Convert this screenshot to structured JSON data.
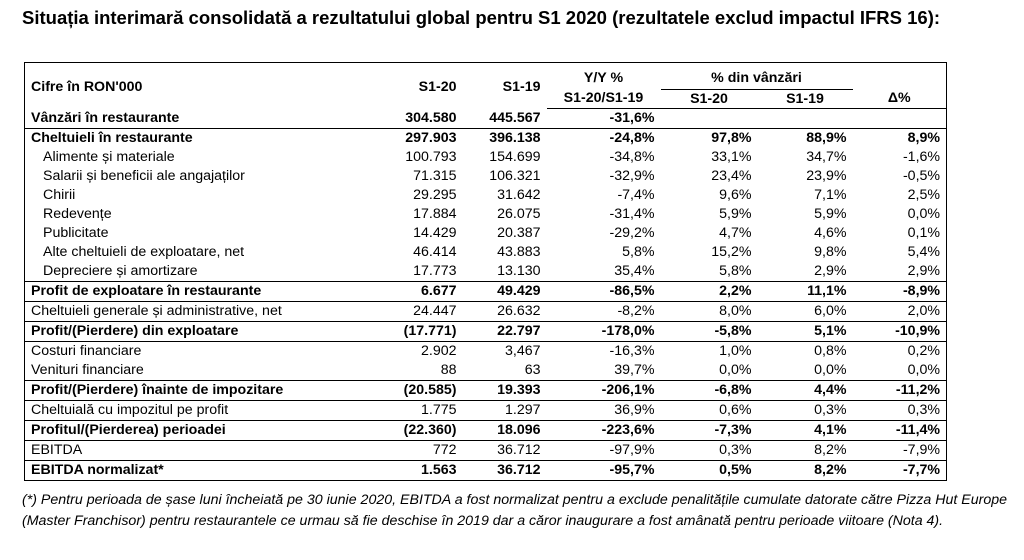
{
  "title": "Situația interimară consolidată a rezultatului global pentru S1 2020 (rezultatele exclud impactul IFRS 16):",
  "header": {
    "col_label": "Cifre în RON'000",
    "col_s120": "S1-20",
    "col_s119": "S1-19",
    "col_yy_top": "Y/Y %",
    "col_yy_bottom": "S1-20/S1-19",
    "pct_group": "% din vânzări",
    "pct_s120": "S1-20",
    "pct_s119": "S1-19",
    "delta": "Δ%"
  },
  "rows": [
    {
      "label": "Vânzări în restaurante",
      "s120": "304.580",
      "s119": "445.567",
      "yy": "-31,6%",
      "p20": "",
      "p19": "",
      "d": ""
    },
    {
      "label": "Cheltuieli în restaurante",
      "s120": "297.903",
      "s119": "396.138",
      "yy": "-24,8%",
      "p20": "97,8%",
      "p19": "88,9%",
      "d": "8,9%"
    },
    {
      "label": "Alimente și materiale",
      "s120": "100.793",
      "s119": "154.699",
      "yy": "-34,8%",
      "p20": "33,1%",
      "p19": "34,7%",
      "d": "-1,6%"
    },
    {
      "label": "Salarii și beneficii ale angajaților",
      "s120": "71.315",
      "s119": "106.321",
      "yy": "-32,9%",
      "p20": "23,4%",
      "p19": "23,9%",
      "d": "-0,5%"
    },
    {
      "label": "Chirii",
      "s120": "29.295",
      "s119": "31.642",
      "yy": "-7,4%",
      "p20": "9,6%",
      "p19": "7,1%",
      "d": "2,5%"
    },
    {
      "label": "Redevențe",
      "s120": "17.884",
      "s119": "26.075",
      "yy": "-31,4%",
      "p20": "5,9%",
      "p19": "5,9%",
      "d": "0,0%"
    },
    {
      "label": "Publicitate",
      "s120": "14.429",
      "s119": "20.387",
      "yy": "-29,2%",
      "p20": "4,7%",
      "p19": "4,6%",
      "d": "0,1%"
    },
    {
      "label": "Alte cheltuieli de exploatare, net",
      "s120": "46.414",
      "s119": "43.883",
      "yy": "5,8%",
      "p20": "15,2%",
      "p19": "9,8%",
      "d": "5,4%"
    },
    {
      "label": "Depreciere și amortizare",
      "s120": "17.773",
      "s119": "13.130",
      "yy": "35,4%",
      "p20": "5,8%",
      "p19": "2,9%",
      "d": "2,9%"
    },
    {
      "label": "Profit de exploatare în restaurante",
      "s120": "6.677",
      "s119": "49.429",
      "yy": "-86,5%",
      "p20": "2,2%",
      "p19": "11,1%",
      "d": "-8,9%"
    },
    {
      "label": "Cheltuieli generale și administrative, net",
      "s120": "24.447",
      "s119": "26.632",
      "yy": "-8,2%",
      "p20": "8,0%",
      "p19": "6,0%",
      "d": "2,0%"
    },
    {
      "label": "Profit/(Pierdere) din exploatare",
      "s120": "(17.771)",
      "s119": "22.797",
      "yy": "-178,0%",
      "p20": "-5,8%",
      "p19": "5,1%",
      "d": "-10,9%"
    },
    {
      "label": "Costuri financiare",
      "s120": "2.902",
      "s119": "3,467",
      "yy": "-16,3%",
      "p20": "1,0%",
      "p19": "0,8%",
      "d": "0,2%"
    },
    {
      "label": "Venituri financiare",
      "s120": "88",
      "s119": "63",
      "yy": "39,7%",
      "p20": "0,0%",
      "p19": "0,0%",
      "d": "0,0%"
    },
    {
      "label": "Profit/(Pierdere) înainte de impozitare",
      "s120": "(20.585)",
      "s119": "19.393",
      "yy": "-206,1%",
      "p20": "-6,8%",
      "p19": "4,4%",
      "d": "-11,2%"
    },
    {
      "label": "Cheltuială cu impozitul pe profit",
      "s120": "1.775",
      "s119": "1.297",
      "yy": "36,9%",
      "p20": "0,6%",
      "p19": "0,3%",
      "d": "0,3%"
    },
    {
      "label": "Profitul/(Pierderea) perioadei",
      "s120": "(22.360)",
      "s119": "18.096",
      "yy": "-223,6%",
      "p20": "-7,3%",
      "p19": "4,1%",
      "d": "-11,4%"
    },
    {
      "label": "EBITDA",
      "s120": "772",
      "s119": "36.712",
      "yy": "-97,9%",
      "p20": "0,3%",
      "p19": "8,2%",
      "d": "-7,9%"
    },
    {
      "label": "EBITDA normalizat*",
      "s120": "1.563",
      "s119": "36.712",
      "yy": "-95,7%",
      "p20": "0,5%",
      "p19": "8,2%",
      "d": "-7,7%"
    }
  ],
  "footnote": "(*) Pentru perioada de șase luni încheiată pe 30 iunie 2020, EBITDA a fost normalizat pentru a exclude penalitățile cumulate datorate către Pizza Hut Europe (Master Franchisor) pentru restaurantele ce urmau să fie deschise în 2019 dar a căror inaugurare a fost amânată pentru perioade viitoare (Nota 4)."
}
